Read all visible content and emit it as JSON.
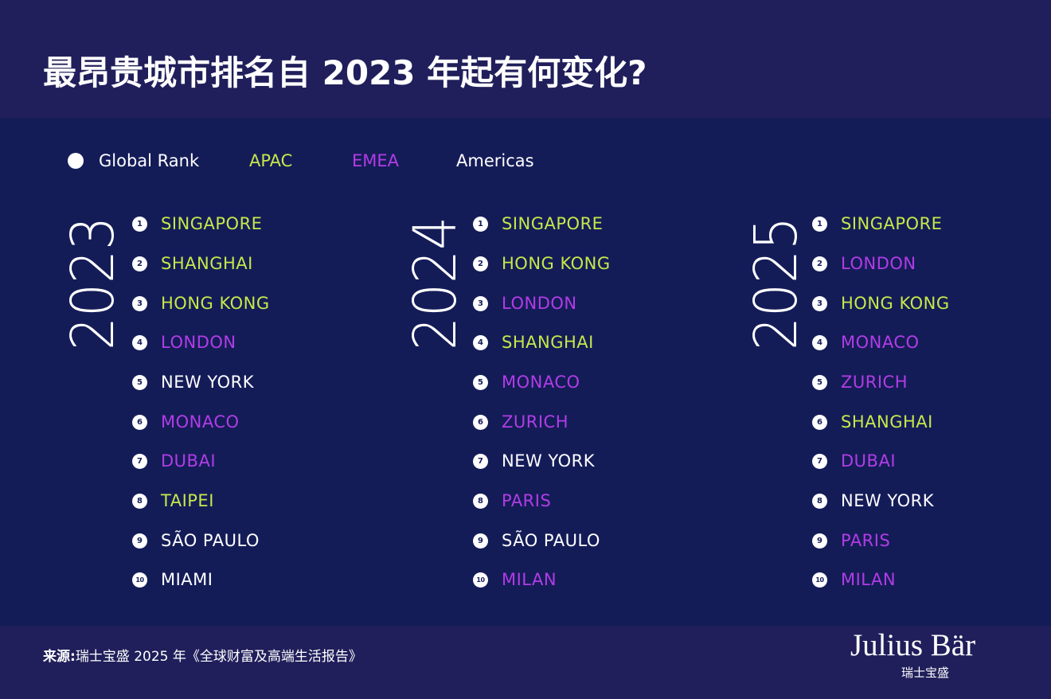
{
  "title": "最昂贵城市排名自 2023 年起有何变化?",
  "colors": {
    "header_bg": "#201f5b",
    "panel_bg": "#141c58",
    "apac": "#c5e84a",
    "emea": "#b23ce6",
    "americas": "#ffffff",
    "global_rank": "#ffffff"
  },
  "legend": {
    "global_rank": "Global Rank",
    "apac": "APAC",
    "emea": "EMEA",
    "americas": "Americas"
  },
  "rankings": [
    {
      "year": "2023",
      "cities": [
        {
          "rank": "1",
          "name": "SINGAPORE",
          "region": "apac"
        },
        {
          "rank": "2",
          "name": "SHANGHAI",
          "region": "apac"
        },
        {
          "rank": "3",
          "name": "HONG KONG",
          "region": "apac"
        },
        {
          "rank": "4",
          "name": "LONDON",
          "region": "emea"
        },
        {
          "rank": "5",
          "name": "NEW YORK",
          "region": "americas"
        },
        {
          "rank": "6",
          "name": "MONACO",
          "region": "emea"
        },
        {
          "rank": "7",
          "name": "DUBAI",
          "region": "emea"
        },
        {
          "rank": "8",
          "name": "TAIPEI",
          "region": "apac"
        },
        {
          "rank": "9",
          "name": "SÃO PAULO",
          "region": "americas"
        },
        {
          "rank": "10",
          "name": "MIAMI",
          "region": "americas"
        }
      ]
    },
    {
      "year": "2024",
      "cities": [
        {
          "rank": "1",
          "name": "SINGAPORE",
          "region": "apac"
        },
        {
          "rank": "2",
          "name": "HONG KONG",
          "region": "apac"
        },
        {
          "rank": "3",
          "name": "LONDON",
          "region": "emea"
        },
        {
          "rank": "4",
          "name": "SHANGHAI",
          "region": "apac"
        },
        {
          "rank": "5",
          "name": "MONACO",
          "region": "emea"
        },
        {
          "rank": "6",
          "name": "ZURICH",
          "region": "emea"
        },
        {
          "rank": "7",
          "name": "NEW YORK",
          "region": "americas"
        },
        {
          "rank": "8",
          "name": "PARIS",
          "region": "emea"
        },
        {
          "rank": "9",
          "name": "SÃO PAULO",
          "region": "americas"
        },
        {
          "rank": "10",
          "name": "MILAN",
          "region": "emea"
        }
      ]
    },
    {
      "year": "2025",
      "cities": [
        {
          "rank": "1",
          "name": "SINGAPORE",
          "region": "apac"
        },
        {
          "rank": "2",
          "name": "LONDON",
          "region": "emea"
        },
        {
          "rank": "3",
          "name": "HONG KONG",
          "region": "apac"
        },
        {
          "rank": "4",
          "name": "MONACO",
          "region": "emea"
        },
        {
          "rank": "5",
          "name": "ZURICH",
          "region": "emea"
        },
        {
          "rank": "6",
          "name": "SHANGHAI",
          "region": "apac"
        },
        {
          "rank": "7",
          "name": "DUBAI",
          "region": "emea"
        },
        {
          "rank": "8",
          "name": "NEW YORK",
          "region": "americas"
        },
        {
          "rank": "9",
          "name": "PARIS",
          "region": "emea"
        },
        {
          "rank": "10",
          "name": "MILAN",
          "region": "emea"
        }
      ]
    }
  ],
  "footer": {
    "source_label": "来源:",
    "source_text": "瑞士宝盛 2025 年《全球财富及高端生活报告》",
    "logo_name": "Julius Bär",
    "logo_sub": "瑞士宝盛"
  }
}
